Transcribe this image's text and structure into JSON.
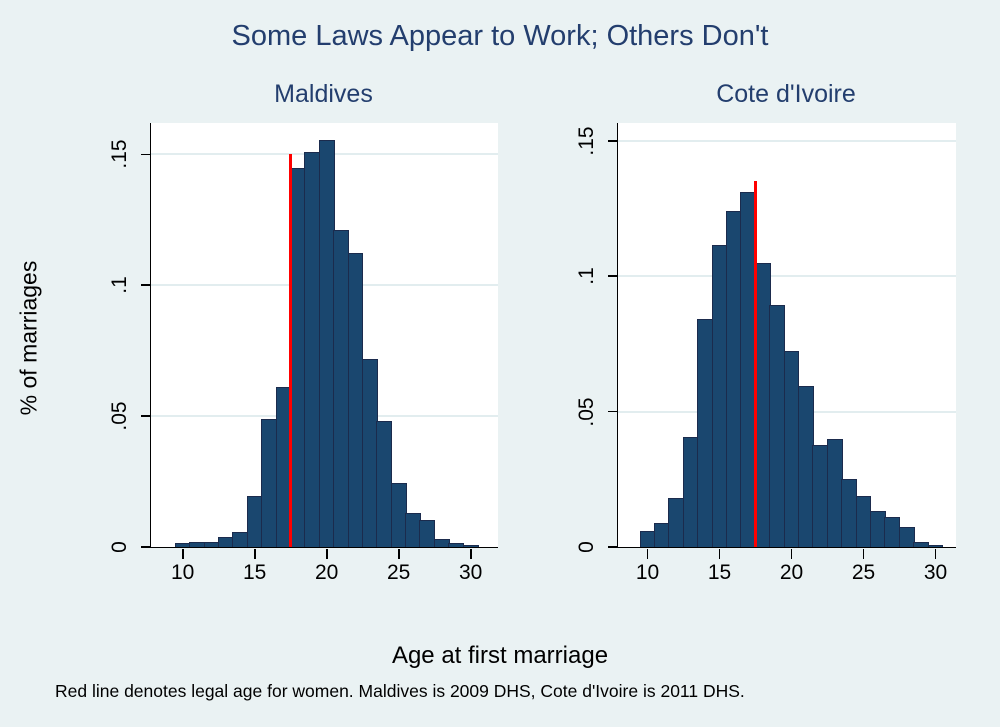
{
  "title": "Some Laws Appear to Work; Others Don't",
  "ylabel": "% of marriages",
  "xlabel": "Age at first marriage",
  "footnote": "Red line denotes legal age for women. Maldives is 2009 DHS, Cote d'Ivoire is 2011 DHS.",
  "colors": {
    "background": "#eaf2f3",
    "plot_background": "#ffffff",
    "bar_fill": "#1a476f",
    "bar_border": "#1b2b4d",
    "red_line": "#ff0000",
    "title_text": "#233e6e",
    "axis_text": "#000000",
    "gridline": "#e2edef",
    "axis_line": "#000000"
  },
  "chart_data": [
    {
      "type": "bar",
      "title": "Maldives",
      "xlabel": "Age at first marriage",
      "ylabel": "% of marriages",
      "bin_width": 1,
      "x": [
        10,
        11,
        12,
        13,
        14,
        15,
        16,
        17,
        18,
        19,
        20,
        21,
        22,
        23,
        24,
        25,
        26,
        27,
        28,
        29,
        30
      ],
      "values": [
        0.0015,
        0.002,
        0.002,
        0.0037,
        0.0058,
        0.0195,
        0.049,
        0.061,
        0.145,
        0.151,
        0.1555,
        0.121,
        0.1125,
        0.072,
        0.048,
        0.0245,
        0.013,
        0.0105,
        0.003,
        0.0016,
        0.0009
      ],
      "red_line_x": 17.5,
      "red_line_top": 0.15,
      "xticks": [
        {
          "v": 10,
          "label": "10"
        },
        {
          "v": 15,
          "label": "15"
        },
        {
          "v": 20,
          "label": "20"
        },
        {
          "v": 25,
          "label": "25"
        },
        {
          "v": 30,
          "label": "30"
        }
      ],
      "yticks": [
        {
          "v": 0,
          "label": "0"
        },
        {
          "v": 0.05,
          "label": ".05"
        },
        {
          "v": 0.1,
          "label": ".1"
        },
        {
          "v": 0.15,
          "label": ".15"
        }
      ],
      "xlim": [
        7.8,
        31.9
      ],
      "ylim": [
        0,
        0.162
      ],
      "grid": true
    },
    {
      "type": "bar",
      "title": "Cote d'Ivoire",
      "xlabel": "Age at first marriage",
      "ylabel": "% of marriages",
      "bin_width": 1,
      "x": [
        10,
        11,
        12,
        13,
        14,
        15,
        16,
        17,
        18,
        19,
        20,
        21,
        22,
        23,
        24,
        25,
        26,
        27,
        28,
        29,
        30
      ],
      "values": [
        0.006,
        0.009,
        0.018,
        0.0405,
        0.084,
        0.1115,
        0.124,
        0.131,
        0.105,
        0.0895,
        0.0725,
        0.0595,
        0.0378,
        0.0398,
        0.0252,
        0.0188,
        0.0133,
        0.011,
        0.0075,
        0.0018,
        0.0008
      ],
      "red_line_x": 17.5,
      "red_line_top": 0.135,
      "xticks": [
        {
          "v": 10,
          "label": "10"
        },
        {
          "v": 15,
          "label": "15"
        },
        {
          "v": 20,
          "label": "20"
        },
        {
          "v": 25,
          "label": "25"
        },
        {
          "v": 30,
          "label": "30"
        }
      ],
      "yticks": [
        {
          "v": 0,
          "label": "0"
        },
        {
          "v": 0.05,
          "label": ".05"
        },
        {
          "v": 0.1,
          "label": ".1"
        },
        {
          "v": 0.15,
          "label": ".15"
        }
      ],
      "xlim": [
        7.95,
        31.42
      ],
      "ylim": [
        0,
        0.1565
      ],
      "grid": true
    }
  ]
}
